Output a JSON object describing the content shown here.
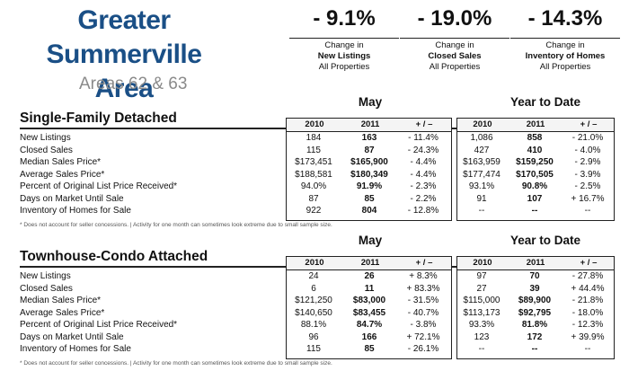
{
  "header": {
    "title_line1": "Greater Summerville",
    "title_line2": "Area",
    "subtitle": "Areas 62 & 63"
  },
  "stats": [
    {
      "value": "- 9.1%",
      "line1": "Change in",
      "line2": "New Listings",
      "line3": "All Properties"
    },
    {
      "value": "- 19.0%",
      "line1": "Change in",
      "line2": "Closed Sales",
      "line3": "All Properties"
    },
    {
      "value": "- 14.3%",
      "line1": "Change in",
      "line2": "Inventory of Homes",
      "line3": "All Properties"
    }
  ],
  "col_headers": {
    "y2010": "2010",
    "y2011": "2011",
    "change": "+ / –"
  },
  "sections": [
    {
      "title": "Single-Family Detached",
      "group_month": "May",
      "group_ytd": "Year to Date",
      "note": "* Does not account for seller concessions.  |  Activity for one month can sometimes look extreme due to small sample size.",
      "rows": [
        {
          "label": "New Listings",
          "m2010": "184",
          "m2011": "163",
          "mchg": "- 11.4%",
          "y2010": "1,086",
          "y2011": "858",
          "ychg": "- 21.0%"
        },
        {
          "label": "Closed Sales",
          "m2010": "115",
          "m2011": "87",
          "mchg": "- 24.3%",
          "y2010": "427",
          "y2011": "410",
          "ychg": "- 4.0%"
        },
        {
          "label": "Median Sales Price*",
          "m2010": "$173,451",
          "m2011": "$165,900",
          "mchg": "- 4.4%",
          "y2010": "$163,959",
          "y2011": "$159,250",
          "ychg": "- 2.9%"
        },
        {
          "label": "Average Sales Price*",
          "m2010": "$188,581",
          "m2011": "$180,349",
          "mchg": "- 4.4%",
          "y2010": "$177,474",
          "y2011": "$170,505",
          "ychg": "- 3.9%"
        },
        {
          "label": "Percent of Original List Price Received*",
          "m2010": "94.0%",
          "m2011": "91.9%",
          "mchg": "- 2.3%",
          "y2010": "93.1%",
          "y2011": "90.8%",
          "ychg": "- 2.5%"
        },
        {
          "label": "Days on Market Until Sale",
          "m2010": "87",
          "m2011": "85",
          "mchg": "- 2.2%",
          "y2010": "91",
          "y2011": "107",
          "ychg": "+ 16.7%"
        },
        {
          "label": "Inventory of Homes for Sale",
          "m2010": "922",
          "m2011": "804",
          "mchg": "- 12.8%",
          "y2010": "--",
          "y2011": "--",
          "ychg": "--"
        }
      ]
    },
    {
      "title": "Townhouse-Condo Attached",
      "group_month": "May",
      "group_ytd": "Year to Date",
      "note": "* Does not account for seller concessions.  |  Activity for one month can sometimes look extreme due to small sample size.",
      "rows": [
        {
          "label": "New Listings",
          "m2010": "24",
          "m2011": "26",
          "mchg": "+ 8.3%",
          "y2010": "97",
          "y2011": "70",
          "ychg": "- 27.8%"
        },
        {
          "label": "Closed Sales",
          "m2010": "6",
          "m2011": "11",
          "mchg": "+ 83.3%",
          "y2010": "27",
          "y2011": "39",
          "ychg": "+ 44.4%"
        },
        {
          "label": "Median Sales Price*",
          "m2010": "$121,250",
          "m2011": "$83,000",
          "mchg": "- 31.5%",
          "y2010": "$115,000",
          "y2011": "$89,900",
          "ychg": "- 21.8%"
        },
        {
          "label": "Average Sales Price*",
          "m2010": "$140,650",
          "m2011": "$83,455",
          "mchg": "- 40.7%",
          "y2010": "$113,173",
          "y2011": "$92,795",
          "ychg": "- 18.0%"
        },
        {
          "label": "Percent of Original List Price Received*",
          "m2010": "88.1%",
          "m2011": "84.7%",
          "mchg": "- 3.8%",
          "y2010": "93.3%",
          "y2011": "81.8%",
          "ychg": "- 12.3%"
        },
        {
          "label": "Days on Market Until Sale",
          "m2010": "96",
          "m2011": "166",
          "mchg": "+ 72.1%",
          "y2010": "123",
          "y2011": "172",
          "ychg": "+ 39.9%"
        },
        {
          "label": "Inventory of Homes for Sale",
          "m2010": "115",
          "m2011": "85",
          "mchg": "- 26.1%",
          "y2010": "--",
          "y2011": "--",
          "ychg": "--"
        }
      ]
    }
  ],
  "colors": {
    "title_blue": "#1a4f86",
    "subtitle_gray": "#8a8a8a"
  }
}
